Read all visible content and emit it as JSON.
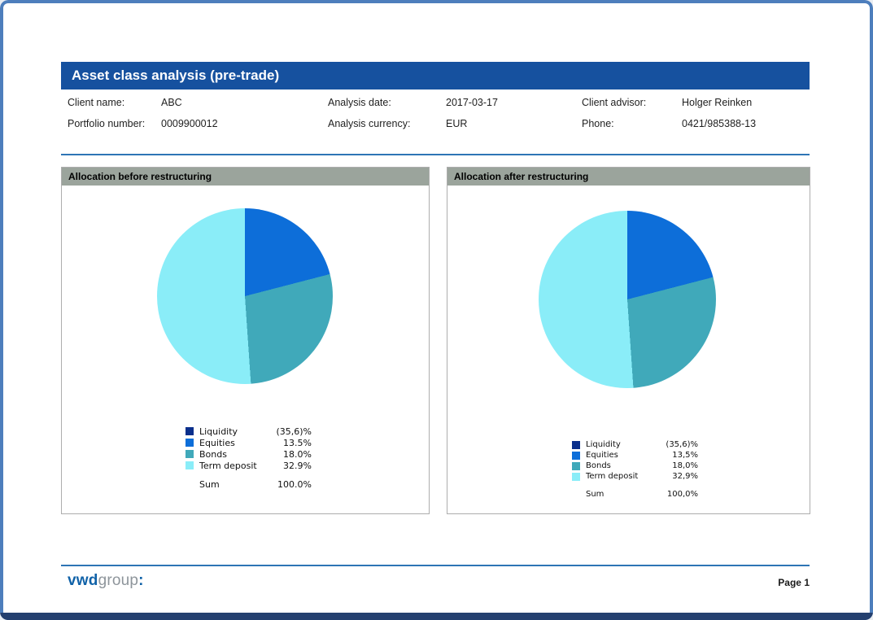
{
  "header": {
    "title": "Asset class analysis (pre-trade)",
    "info_rows": [
      [
        {
          "label": "Client name:",
          "value": "ABC"
        },
        {
          "label": "Analysis date:",
          "value": "2017-03-17"
        },
        {
          "label": "Client advisor:",
          "value": "Holger Reinken"
        }
      ],
      [
        {
          "label": "Portfolio number:",
          "value": "0009900012"
        },
        {
          "label": "Analysis currency:",
          "value": "EUR"
        },
        {
          "label": "Phone:",
          "value": "0421/985388-13"
        }
      ]
    ]
  },
  "chart_data": [
    {
      "type": "pie",
      "title": "Allocation before restructuring",
      "labels": [
        "Liquidity",
        "Equities",
        "Bonds",
        "Term deposit"
      ],
      "values_display": [
        "(35,6)%",
        "13.5%",
        "18.0%",
        "32.9%"
      ],
      "values_numeric": [
        35.6,
        13.5,
        18.0,
        32.9
      ],
      "sum_label": "Sum",
      "sum_display": "100.0%",
      "colors": [
        "#0a2f8c",
        "#0d6ed9",
        "#40a9ba",
        "#8aedf8"
      ],
      "legend_position": "below-chart",
      "drawn_slices": [
        {
          "label": "Equities",
          "color": "#0d6ed9",
          "share_pct": 20.96
        },
        {
          "label": "Bonds",
          "color": "#40a9ba",
          "share_pct": 27.95
        },
        {
          "label": "Term deposit",
          "color": "#8aedf8",
          "share_pct": 51.09
        }
      ]
    },
    {
      "type": "pie",
      "title": "Allocation after restructuring",
      "labels": [
        "Liquidity",
        "Equities",
        "Bonds",
        "Term deposit"
      ],
      "values_display": [
        "(35,6)%",
        "13,5%",
        "18,0%",
        "32,9%"
      ],
      "values_numeric": [
        35.6,
        13.5,
        18.0,
        32.9
      ],
      "sum_label": "Sum",
      "sum_display": "100,0%",
      "colors": [
        "#0a2f8c",
        "#0d6ed9",
        "#40a9ba",
        "#8aedf8"
      ],
      "legend_position": "below-chart",
      "drawn_slices": [
        {
          "label": "Equities",
          "color": "#0d6ed9",
          "share_pct": 20.96
        },
        {
          "label": "Bonds",
          "color": "#40a9ba",
          "share_pct": 27.95
        },
        {
          "label": "Term deposit",
          "color": "#8aedf8",
          "share_pct": 51.09
        }
      ]
    }
  ],
  "footer": {
    "brand_bold": "vwd",
    "brand_light": "group",
    "brand_colon": ":",
    "page": "Page 1"
  },
  "colors": {
    "title_bar": "#16519f",
    "divider": "#2e75b5",
    "panel_header": "#9ba49c",
    "frame_border": "#4d7ebc",
    "bottom_strip": "#24406f"
  }
}
